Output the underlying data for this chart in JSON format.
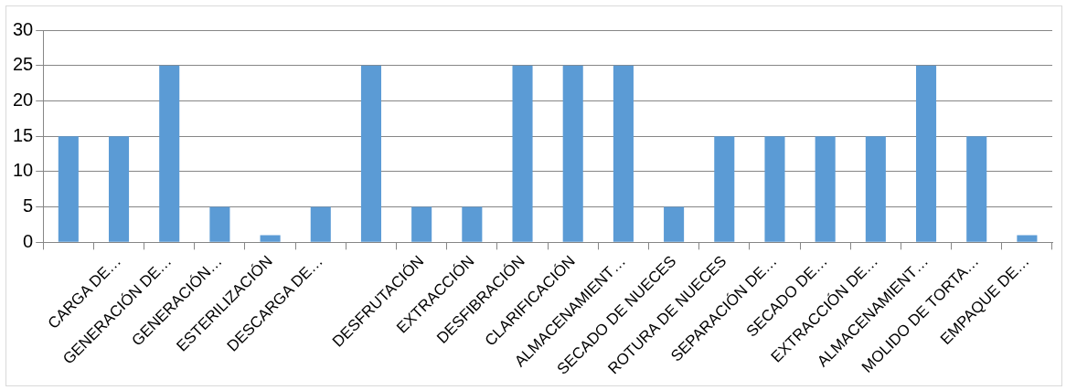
{
  "chart_data": {
    "type": "bar",
    "categories": [
      null,
      "CARGA DE…",
      "GENERACIÓN DE…",
      "GENERACIÓN…",
      "ESTERILIZACIÓN",
      "DESCARGA DE…",
      null,
      "DESFRUTACIÓN",
      "EXTRACCIÓN",
      "DESFIBRACIÓN",
      "CLARIFICACIÓN",
      "ALMACENAMIENT…",
      "SECADO DE NUECES",
      "ROTURA DE NUECES",
      "SEPARACIÓN DE…",
      "SECADO DE…",
      "EXTRACCIÓN DE…",
      "ALMACENAMIENT…",
      "MOLIDO DE TORTA…",
      "EMPAQUE DE…"
    ],
    "values": [
      15,
      15,
      25,
      5,
      1,
      5,
      25,
      5,
      5,
      25,
      25,
      25,
      5,
      15,
      15,
      15,
      15,
      25,
      15,
      1
    ],
    "color": "#5b9bd5",
    "ylim": [
      0,
      30
    ],
    "yticks": [
      0,
      5,
      10,
      15,
      20,
      25,
      30
    ],
    "grid": "y",
    "legend": false
  }
}
